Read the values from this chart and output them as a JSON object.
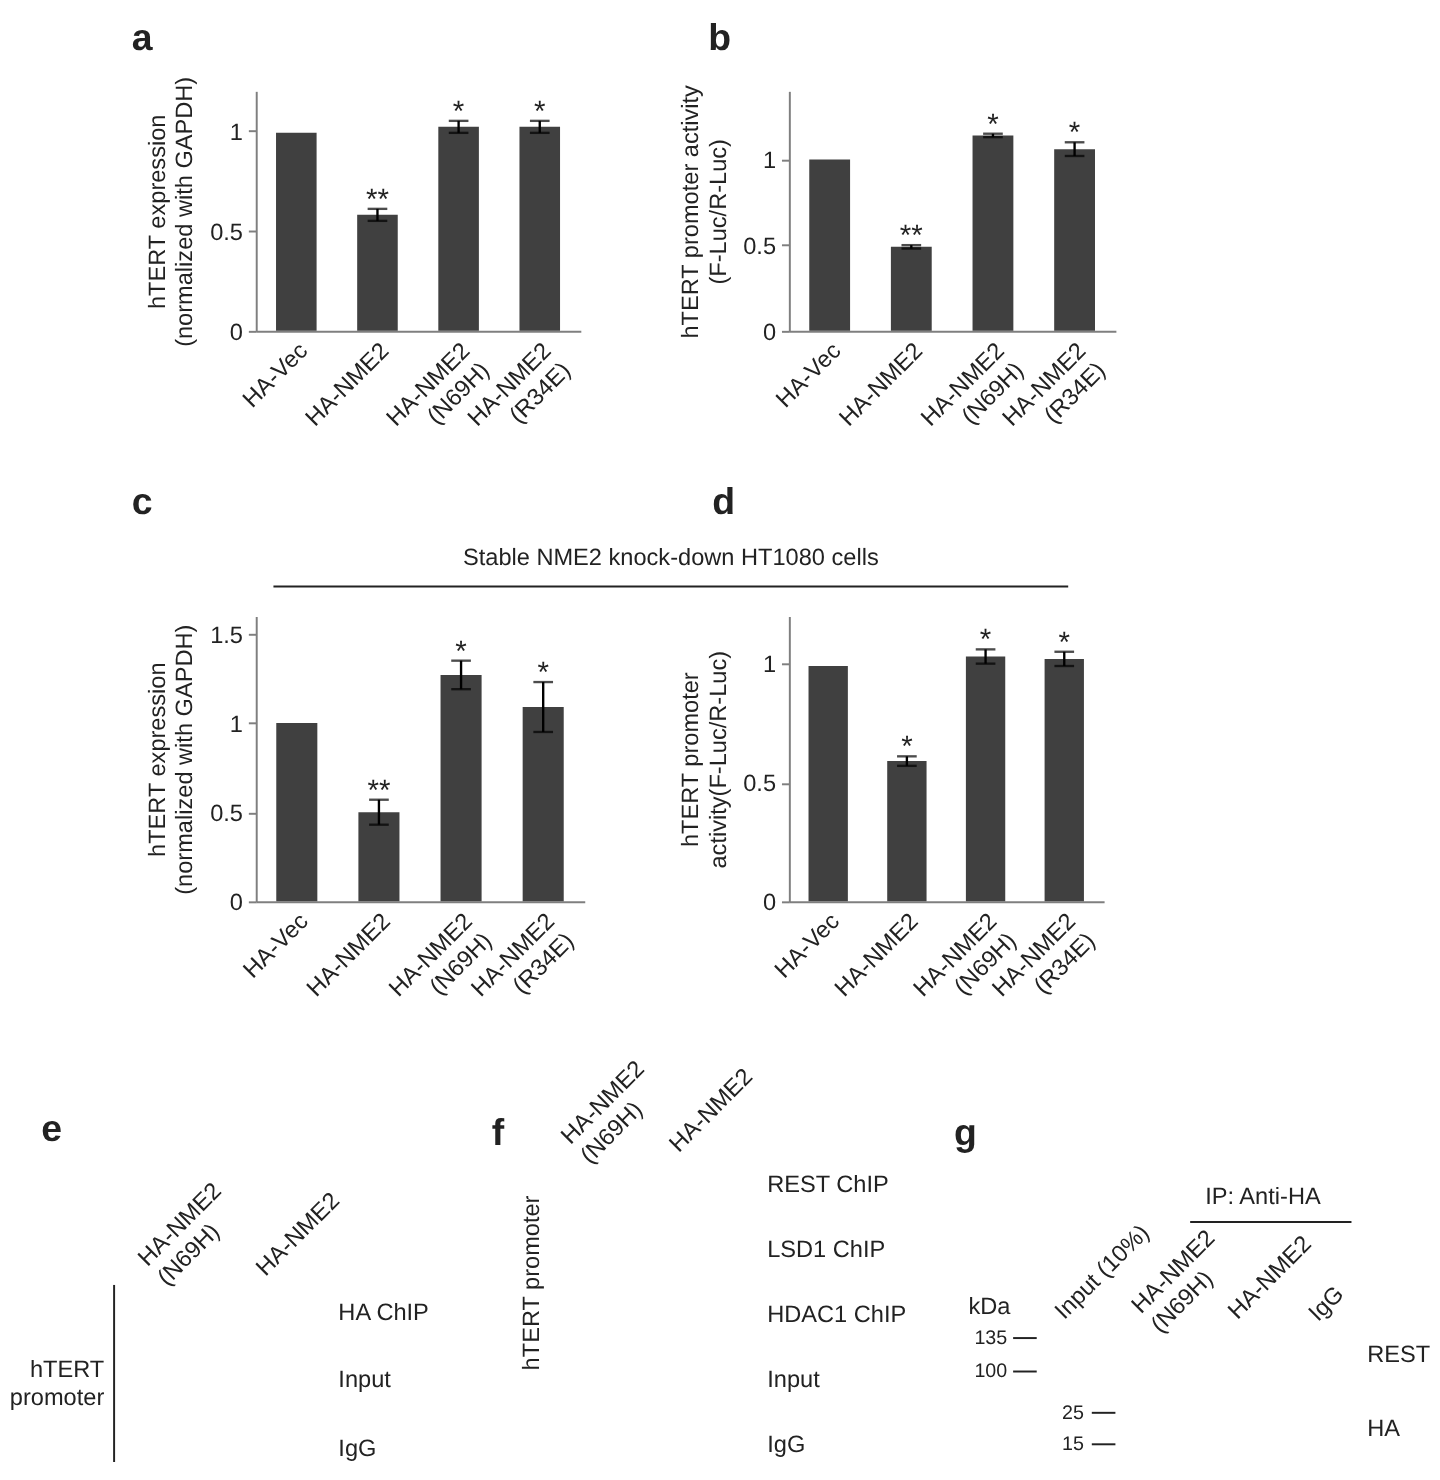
{
  "chart_data": [
    {
      "type": "bar",
      "title": "a",
      "ylabel": "hTERT expression\n(normalized with GAPDH)",
      "categories": [
        "HA-Vec",
        "HA-NME2",
        "HA-NME2\n(N69H)",
        "HA-NME2\n(R34E)"
      ],
      "values": [
        0.99,
        0.58,
        1.02,
        1.02
      ],
      "errors": [
        null,
        0.03,
        0.03,
        0.03
      ],
      "color": "#404040",
      "ylim": [
        0,
        1.2
      ],
      "yticks": [
        0,
        0.5,
        1
      ],
      "annotations": [
        {
          "text": "**",
          "x": "HA-NME2",
          "y": 0.58
        },
        {
          "text": "*",
          "x": "HA-NME2\n(N69H)",
          "y": 1.02
        },
        {
          "text": "*",
          "x": "HA-NME2\n(R34E)",
          "y": 1.02
        }
      ]
    },
    {
      "type": "bar",
      "title": "b",
      "ylabel": "hTERT promoter activity\n(F-Luc/R-Luc)",
      "categories": [
        "HA-Vec",
        "HA-NME2",
        "HA-NME2\n(N69H)",
        "HA-NME2\n(R34E)"
      ],
      "values": [
        1.0,
        0.49,
        1.14,
        1.06
      ],
      "errors": [
        null,
        0.01,
        0.01,
        0.04
      ],
      "color": "#404040",
      "ylim": [
        0,
        1.4
      ],
      "yticks": [
        0,
        0.5,
        1
      ],
      "annotations": [
        {
          "text": "**",
          "x": "HA-NME2",
          "y": 0.49
        },
        {
          "text": "*",
          "x": "HA-NME2\n(N69H)",
          "y": 1.14
        },
        {
          "text": "*",
          "x": "HA-NME2\n(R34E)",
          "y": 1.06
        }
      ]
    },
    {
      "type": "bar",
      "title": "c",
      "subtitle": "Stable NME2 knock-down HT1080 cells",
      "ylabel": "hTERT expression\n(normalized with GAPDH)",
      "categories": [
        "HA-Vec",
        "HA-NME2",
        "HA-NME2\n(N69H)",
        "HA-NME2\n(R34E)"
      ],
      "values": [
        1.0,
        0.5,
        1.27,
        1.09
      ],
      "errors": [
        null,
        0.07,
        0.08,
        0.14
      ],
      "color": "#404040",
      "ylim": [
        0,
        1.6
      ],
      "yticks": [
        0,
        0.5,
        1,
        1.5
      ],
      "annotations": [
        {
          "text": "**",
          "x": "HA-NME2",
          "y": 0.5
        },
        {
          "text": "*",
          "x": "HA-NME2\n(N69H)",
          "y": 1.27
        },
        {
          "text": "*",
          "x": "HA-NME2\n(R34E)",
          "y": 1.09
        }
      ]
    },
    {
      "type": "bar",
      "title": "d",
      "ylabel": "hTERT promoter\nactivity(F-Luc/R-Luc)",
      "categories": [
        "HA-Vec",
        "HA-NME2",
        "HA-NME2\n(N69H)",
        "HA-NME2\n(R34E)"
      ],
      "values": [
        0.99,
        0.59,
        1.03,
        1.02
      ],
      "errors": [
        null,
        0.02,
        0.03,
        0.03
      ],
      "color": "#404040",
      "ylim": [
        0,
        1.2
      ],
      "yticks": [
        0,
        0.5,
        1
      ],
      "annotations": [
        {
          "text": "*",
          "x": "HA-NME2",
          "y": 0.59
        },
        {
          "text": "*",
          "x": "HA-NME2\n(N69H)",
          "y": 1.03
        },
        {
          "text": "*",
          "x": "HA-NME2\n(R34E)",
          "y": 1.02
        }
      ]
    },
    {
      "type": "other",
      "title": "e",
      "ylabel": "hTERT\npromoter",
      "categories": [
        "HA-NME2\n(N69H)",
        "HA-NME2"
      ],
      "y_categories": [
        "HA ChIP",
        "Input",
        "IgG"
      ]
    },
    {
      "type": "other",
      "title": "f",
      "ylabel": "hTERT promoter",
      "categories": [
        "HA-NME2\n(N69H)",
        "HA-NME2"
      ],
      "y_categories": [
        "REST ChIP",
        "LSD1 ChIP",
        "HDAC1 ChIP",
        "Input",
        "IgG"
      ]
    },
    {
      "type": "other",
      "title": "g",
      "subtitle": "IP: Anti-HA",
      "ylabel": "kDa",
      "categories": [
        "Input (10%)",
        "HA-NME2\n(N69H)",
        "HA-NME2",
        "IgG"
      ],
      "y_categories": [
        "REST",
        "HA"
      ],
      "annotations": [
        "135",
        "100",
        "25",
        "15"
      ]
    }
  ]
}
